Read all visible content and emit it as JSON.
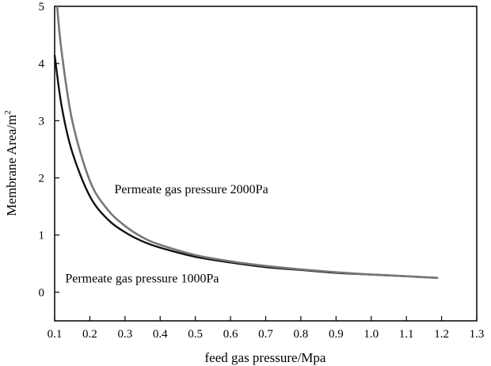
{
  "chart_data": {
    "type": "line",
    "xlabel": "feed gas pressure/Mpa",
    "ylabel": "Membrane Area/m",
    "ylabel_superscript": "2",
    "xlim": [
      0.1,
      1.3
    ],
    "ylim": [
      -0.5,
      5
    ],
    "x_ticks": [
      "0.1",
      "0.2",
      "0.3",
      "0.4",
      "0.5",
      "0.6",
      "0.7",
      "0.8",
      "0.9",
      "1.0",
      "1.1",
      "1.2",
      "1.3"
    ],
    "y_ticks": [
      "0",
      "1",
      "2",
      "3",
      "4",
      "5"
    ],
    "grid": false,
    "series": [
      {
        "name": "Permeate gas pressure 1000Pa",
        "color": "#111111",
        "x": [
          0.1,
          0.12,
          0.15,
          0.2,
          0.25,
          0.3,
          0.35,
          0.4,
          0.5,
          0.6,
          0.7,
          0.8,
          0.9,
          1.0,
          1.1,
          1.19
        ],
        "y": [
          4.15,
          3.25,
          2.45,
          1.68,
          1.28,
          1.05,
          0.89,
          0.78,
          0.62,
          0.52,
          0.44,
          0.39,
          0.34,
          0.31,
          0.28,
          0.25
        ]
      },
      {
        "name": "Permeate gas pressure 2000Pa",
        "color": "#777777",
        "x": [
          0.107,
          0.12,
          0.15,
          0.2,
          0.25,
          0.3,
          0.35,
          0.4,
          0.5,
          0.6,
          0.7,
          0.8,
          0.9,
          1.0,
          1.1,
          1.19
        ],
        "y": [
          5.0,
          4.2,
          3.0,
          1.95,
          1.45,
          1.16,
          0.96,
          0.83,
          0.65,
          0.54,
          0.46,
          0.4,
          0.35,
          0.31,
          0.28,
          0.25
        ]
      }
    ],
    "annotations": [
      {
        "text": "Permeate gas pressure 2000Pa",
        "series": 1,
        "x": 0.27,
        "y": 1.73
      },
      {
        "text": "Permeate gas pressure 1000Pa",
        "series": 0,
        "x": 0.13,
        "y": 0.17
      }
    ]
  }
}
